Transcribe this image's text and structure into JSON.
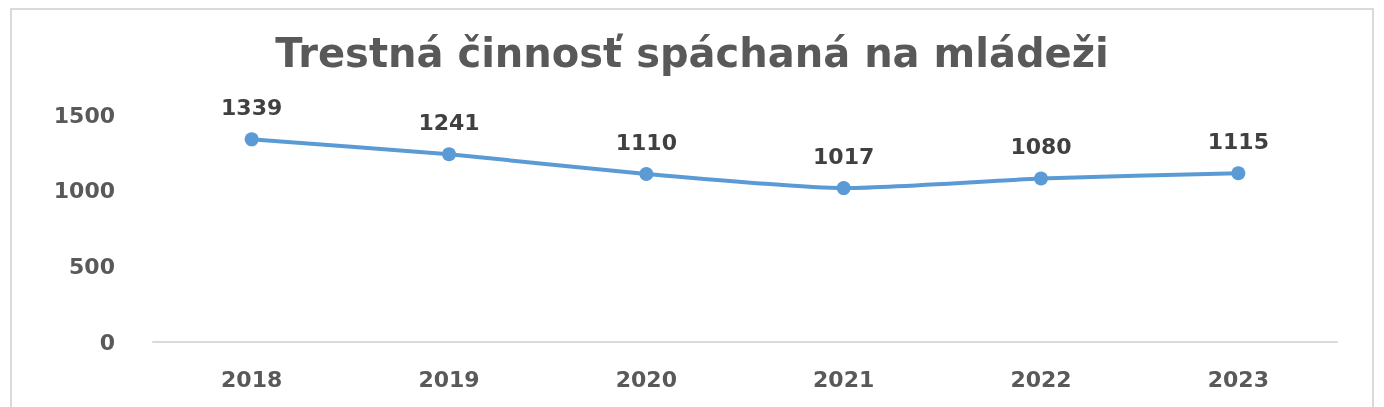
{
  "chart_data": {
    "type": "line",
    "title": "Trestná činnosť spáchaná na mládeži",
    "categories": [
      "2018",
      "2019",
      "2020",
      "2021",
      "2022",
      "2023"
    ],
    "values": [
      1339,
      1241,
      1110,
      1017,
      1080,
      1115
    ],
    "color": "#5b9bd5",
    "ylim": [
      0,
      1500
    ],
    "yticks": [
      0,
      500,
      1000,
      1500
    ],
    "grid": false,
    "marker": "circle",
    "line_style": "solid",
    "data_labels": true
  }
}
